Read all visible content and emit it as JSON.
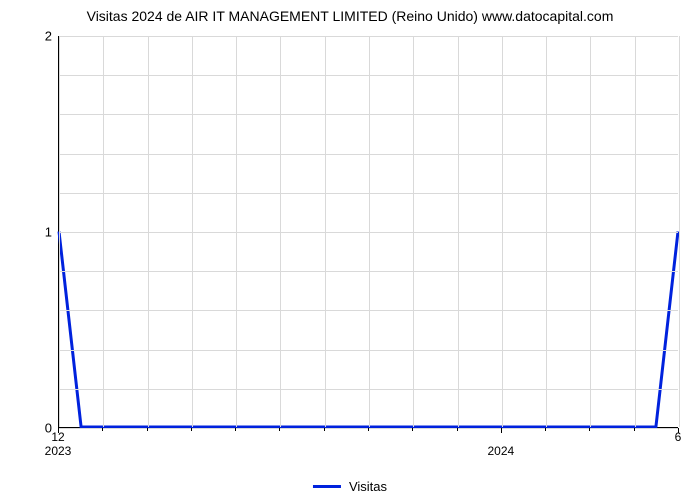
{
  "chart": {
    "type": "line",
    "title": "Visitas 2024 de AIR IT MANAGEMENT LIMITED (Reino Unido) www.datocapital.com",
    "title_fontsize": 14,
    "background_color": "#ffffff",
    "grid_color": "#d9d9d9",
    "axis_color": "#000000",
    "series": {
      "name": "Visitas",
      "color": "#0022dd",
      "line_width": 3,
      "x": [
        0,
        1,
        2,
        3,
        4,
        5,
        6,
        7,
        8,
        9,
        10,
        11,
        12,
        13,
        14,
        15,
        16,
        17,
        18,
        19,
        20,
        21,
        22,
        23,
        24,
        25,
        26,
        27,
        28
      ],
      "y": [
        1,
        0,
        0,
        0,
        0,
        0,
        0,
        0,
        0,
        0,
        0,
        0,
        0,
        0,
        0,
        0,
        0,
        0,
        0,
        0,
        0,
        0,
        0,
        0,
        0,
        0,
        0,
        0,
        1
      ]
    },
    "x_axis": {
      "min": 0,
      "max": 28,
      "major_ticks": [
        {
          "pos": 0,
          "label": "12",
          "year": "2023"
        },
        {
          "pos": 20,
          "label": "",
          "year": "2024"
        },
        {
          "pos": 28,
          "label": "6",
          "year": ""
        }
      ],
      "minor_ticks": [
        2,
        4,
        6,
        8,
        10,
        12,
        14,
        16,
        18,
        22,
        24,
        26
      ]
    },
    "y_axis": {
      "min": 0,
      "max": 2,
      "major_ticks": [
        0,
        1,
        2
      ],
      "minor_grid": [
        0.2,
        0.4,
        0.6,
        0.8,
        1.2,
        1.4,
        1.6,
        1.8
      ],
      "label_fontsize": 13
    },
    "vertical_grid_positions": [
      0,
      2,
      4,
      6,
      8,
      10,
      12,
      14,
      16,
      18,
      20,
      22,
      24,
      26,
      28
    ],
    "legend": {
      "label": "Visitas",
      "color": "#0022dd"
    }
  }
}
